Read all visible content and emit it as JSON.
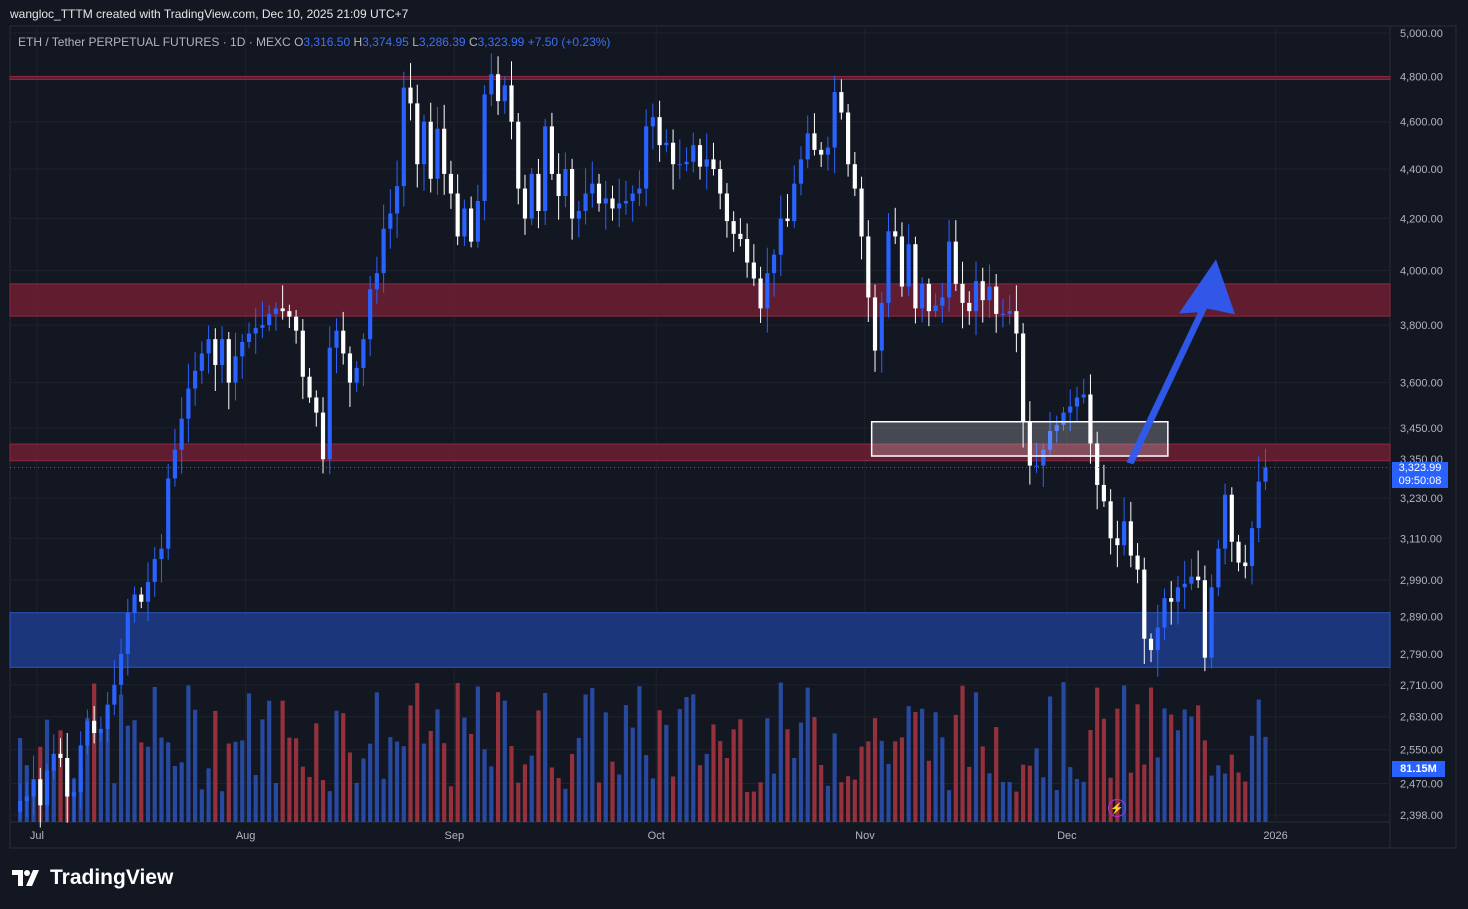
{
  "header": {
    "created_by": "wangloc_TTTM created with TradingView.com, Dec 10, 2025 21:09 UTC+7",
    "symbol_title": "ETH / Tether PERPETUAL FUTURES · 1D · MEXC",
    "open_label": "O",
    "open_value": "3,316.50",
    "high_label": "H",
    "high_value": "3,374.95",
    "low_label": "L",
    "low_value": "3,286.39",
    "close_label": "C",
    "close_value": "3,323.99",
    "change": "+7.50 (+0.23%)"
  },
  "badges": {
    "last_price": "3,323.99",
    "countdown": "09:50:08",
    "volume": "81.15M"
  },
  "branding": {
    "logo_text": "TradingView"
  },
  "colors": {
    "background": "#131722",
    "up_candle": "#2962ff",
    "down_candle": "#ffffff",
    "volume_up": "#2a4fae",
    "volume_down": "#a3343f",
    "resistance_zone": "#6e1f33",
    "support_zone": "#1d3a85",
    "arrow": "#2f5bf2"
  },
  "chart_data": {
    "type": "candlestick",
    "title": "ETH / Tether PERPETUAL FUTURES · 1D · MEXC",
    "y_axis_scale": "log",
    "ylim": [
      2398,
      5000
    ],
    "y_ticks": [
      "5,000.00",
      "4,800.00",
      "4,600.00",
      "4,400.00",
      "4,200.00",
      "4,000.00",
      "3,800.00",
      "3,600.00",
      "3,450.00",
      "3,350.00",
      "3,230.00",
      "3,110.00",
      "2,990.00",
      "2,890.00",
      "2,790.00",
      "2,710.00",
      "2,630.00",
      "2,550.00",
      "2,470.00",
      "2,398.00"
    ],
    "x_ticks": [
      "Jul",
      "Aug",
      "Sep",
      "Oct",
      "Nov",
      "Dec",
      "2026"
    ],
    "x_range": [
      "2025-06-27",
      "2026-01-18"
    ],
    "candles_close": [
      2430,
      2440,
      2480,
      2420,
      2500,
      2540,
      2530,
      2440,
      2450,
      2560,
      2620,
      2590,
      2600,
      2660,
      2710,
      2790,
      2900,
      2950,
      2930,
      2985,
      3050,
      3080,
      3290,
      3380,
      3480,
      3580,
      3640,
      3700,
      3750,
      3660,
      3750,
      3600,
      3690,
      3740,
      3770,
      3790,
      3800,
      3840,
      3860,
      3850,
      3830,
      3780,
      3620,
      3550,
      3500,
      3350,
      3720,
      3780,
      3700,
      3600,
      3650,
      3750,
      3930,
      3990,
      4160,
      4220,
      4330,
      4750,
      4680,
      4420,
      4600,
      4360,
      4570,
      4380,
      4300,
      4130,
      4240,
      4110,
      4270,
      4720,
      4810,
      4690,
      4760,
      4600,
      4320,
      4200,
      4380,
      4230,
      4580,
      4380,
      4290,
      4400,
      4200,
      4230,
      4300,
      4340,
      4260,
      4280,
      4240,
      4260,
      4270,
      4300,
      4320,
      4580,
      4620,
      4500,
      4510,
      4420,
      4420,
      4430,
      4500,
      4410,
      4440,
      4400,
      4300,
      4190,
      4140,
      4120,
      4030,
      3970,
      3860,
      3990,
      4060,
      4200,
      4190,
      4340,
      4440,
      4550,
      4480,
      4460,
      4490,
      4730,
      4640,
      4420,
      4320,
      4130,
      3900,
      3710,
      3880,
      4150,
      4130,
      3940,
      4100,
      3860,
      3950,
      3850,
      3870,
      3900,
      4110,
      3950,
      3880,
      3850,
      3960,
      3890,
      3940,
      3840,
      3840,
      3850,
      3770,
      3470,
      3330,
      3330,
      3380,
      3440,
      3460,
      3500,
      3520,
      3550,
      3560,
      3400,
      3270,
      3220,
      3110,
      3090,
      3160,
      3060,
      3020,
      2830,
      2800,
      2860,
      2940,
      2930,
      2970,
      2980,
      3000,
      2990,
      2780,
      2970,
      3080,
      3240,
      3100,
      3040,
      3030,
      3140,
      3280,
      3324
    ],
    "resistance_zones": [
      {
        "low": 4790,
        "high": 4800
      },
      {
        "low": 3832,
        "high": 3950
      },
      {
        "low": 3345,
        "high": 3398
      }
    ],
    "support_zone": {
      "low": 2755,
      "high": 2900
    },
    "target_box": {
      "low": 3360,
      "high": 3470,
      "from": "2025-11-02",
      "to": "2025-12-16"
    },
    "arrow": {
      "from_price": 3340,
      "to_price": 3900
    }
  }
}
